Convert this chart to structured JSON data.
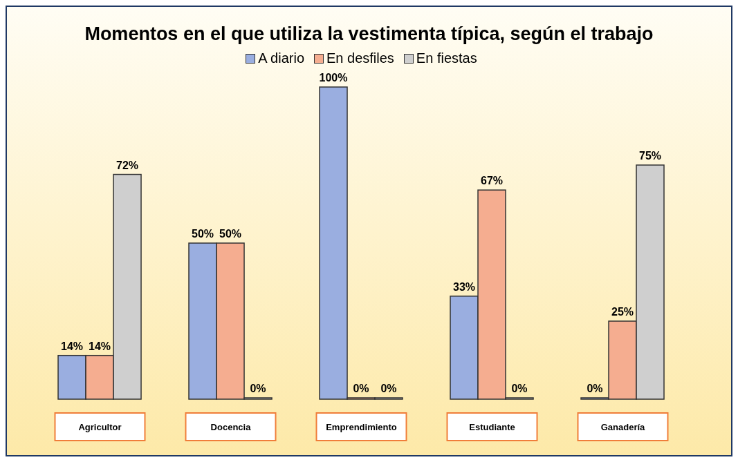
{
  "chart_data": {
    "type": "bar",
    "title": "Momentos en el que utiliza la vestimenta típica, según el trabajo",
    "categories": [
      "Agricultor",
      "Docencia",
      "Emprendimiento",
      "Estudiante",
      "Ganadería"
    ],
    "series": [
      {
        "name": "A diario",
        "color": "#9aaee0",
        "values": [
          14,
          50,
          100,
          33,
          0
        ],
        "value_labels": [
          "14%",
          "50%",
          "100%",
          "33%",
          "0%"
        ]
      },
      {
        "name": "En desfiles",
        "color": "#f5ad90",
        "values": [
          14,
          50,
          0,
          67,
          25
        ],
        "value_labels": [
          "14%",
          "50%",
          "0%",
          "67%",
          "25%"
        ]
      },
      {
        "name": "En fiestas",
        "color": "#cfcfcf",
        "values": [
          72,
          0,
          0,
          0,
          75
        ],
        "value_labels": [
          "72%",
          "0%",
          "0%",
          "0%",
          "75%"
        ]
      }
    ],
    "legend": "top"
  }
}
